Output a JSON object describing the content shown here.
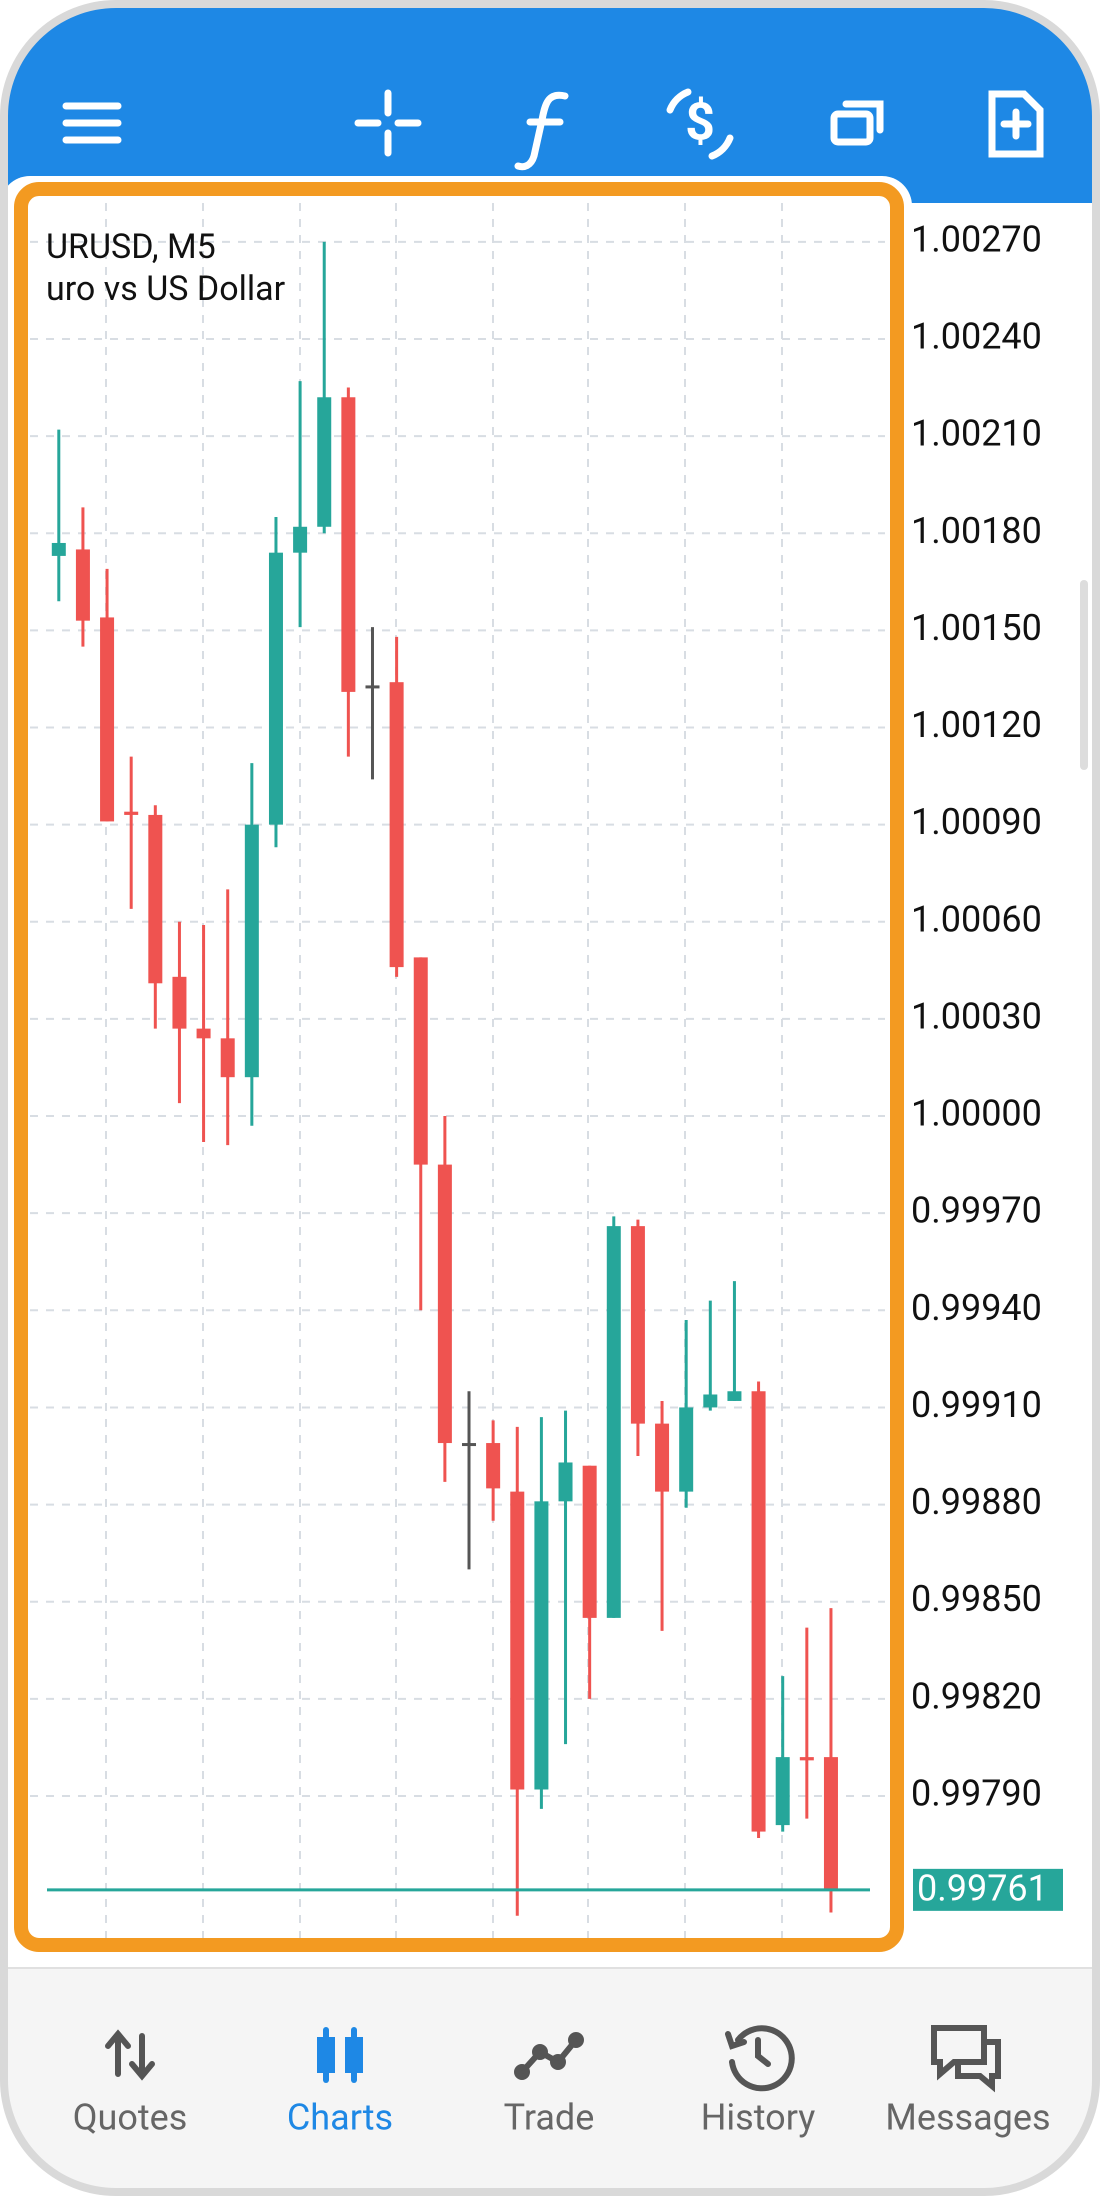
{
  "chart_data": {
    "type": "candlestick",
    "title": "URUSD, M5",
    "subtitle": "uro vs US Dollar",
    "open": [
      1.00173,
      1.00175,
      1.00154,
      1.00094,
      1.00093,
      1.00043,
      1.00027,
      1.00024,
      1.00012,
      1.0009,
      1.00174,
      1.00182,
      1.00222,
      1.00133,
      1.00134,
      1.00049,
      0.99985,
      0.99899,
      0.99899,
      0.99884,
      0.99792,
      0.99881,
      0.99892,
      0.99845,
      0.99966,
      0.99905,
      0.99884,
      0.9991,
      0.99912,
      0.99915,
      0.99781,
      0.99802,
      0.99802
    ],
    "high": [
      1.00212,
      1.00188,
      1.00169,
      1.00111,
      1.00096,
      1.0006,
      1.00059,
      1.0007,
      1.00109,
      1.00185,
      1.00227,
      1.0027,
      1.00225,
      1.00151,
      1.00148,
      1.00049,
      1.0,
      0.99915,
      0.99906,
      0.99904,
      0.99907,
      0.99909,
      0.99892,
      0.99969,
      0.99968,
      0.99912,
      0.99937,
      0.99943,
      0.99949,
      0.99918,
      0.99827,
      0.99842,
      0.99848
    ],
    "low": [
      1.00159,
      1.00145,
      1.00091,
      1.00064,
      1.00027,
      1.00004,
      0.99992,
      0.99991,
      0.99997,
      1.00083,
      1.00151,
      1.0018,
      1.00111,
      1.00104,
      1.00043,
      0.9994,
      0.99887,
      0.9986,
      0.99875,
      0.99753,
      0.99786,
      0.99806,
      0.9982,
      0.99845,
      0.99895,
      0.99841,
      0.99879,
      0.99909,
      0.99912,
      0.99777,
      0.99779,
      0.99783,
      0.99754
    ],
    "close": [
      1.00177,
      1.00153,
      1.00091,
      1.00093,
      1.00041,
      1.00027,
      1.00024,
      1.00012,
      1.0009,
      1.00174,
      1.00182,
      1.00222,
      1.00131,
      1.00133,
      1.00046,
      0.99985,
      0.99899,
      0.99899,
      0.99885,
      0.99792,
      0.99881,
      0.99893,
      0.99845,
      0.99966,
      0.99905,
      0.99884,
      0.9991,
      0.99914,
      0.99915,
      0.99779,
      0.99802,
      0.99801,
      0.99761
    ],
    "up_color": "#26a69a",
    "down_color": "#ef5350",
    "flat_color": "#555555",
    "ylim": [
      0.99752,
      1.00282
    ],
    "yticks": [
      {
        "value": 1.0027,
        "label": "1.00270"
      },
      {
        "value": 1.0024,
        "label": "1.00240"
      },
      {
        "value": 1.0021,
        "label": "1.00210"
      },
      {
        "value": 1.0018,
        "label": "1.00180"
      },
      {
        "value": 1.0015,
        "label": "1.00150"
      },
      {
        "value": 1.0012,
        "label": "1.00120"
      },
      {
        "value": 1.0009,
        "label": "1.00090"
      },
      {
        "value": 1.0006,
        "label": "1.00060"
      },
      {
        "value": 1.0003,
        "label": "1.00030"
      },
      {
        "value": 1.0,
        "label": "1.00000"
      },
      {
        "value": 0.9997,
        "label": "0.99970"
      },
      {
        "value": 0.9994,
        "label": "0.99940"
      },
      {
        "value": 0.9991,
        "label": "0.99910"
      },
      {
        "value": 0.9988,
        "label": "0.99880"
      },
      {
        "value": 0.9985,
        "label": "0.99850"
      },
      {
        "value": 0.9982,
        "label": "0.99820"
      },
      {
        "value": 0.9979,
        "label": "0.99790"
      }
    ],
    "grid": true,
    "current_price": {
      "value": 0.99761,
      "label": "0.99761",
      "color": "#26a69a"
    }
  },
  "nav": {
    "items": [
      {
        "label": "Quotes",
        "color": "#666666"
      },
      {
        "label": "Charts",
        "color": "#1e88e5"
      },
      {
        "label": "Trade",
        "color": "#666666"
      },
      {
        "label": "History",
        "color": "#666666"
      },
      {
        "label": "Messages",
        "color": "#666666"
      }
    ]
  }
}
